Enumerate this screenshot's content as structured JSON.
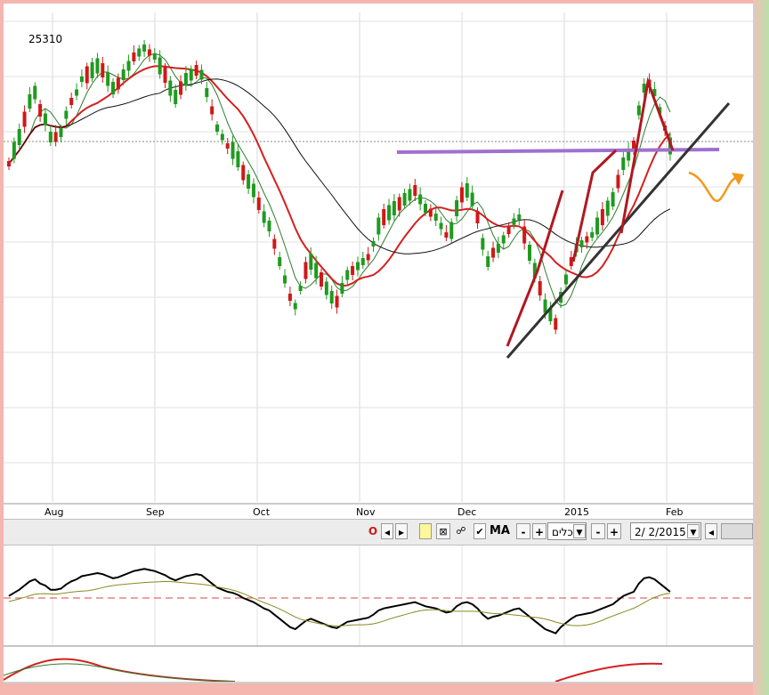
{
  "chart_data": {
    "type": "candlestick",
    "price_label": "25310",
    "x_month_labels": [
      "Aug",
      "Sep",
      "Oct",
      "Nov",
      "Dec",
      "2015",
      "Feb"
    ],
    "candles": [
      {
        "o": 1,
        "c": 0
      },
      {
        "o": 0,
        "c": 1
      },
      {
        "o": 1,
        "c": 0
      },
      {
        "o": 0,
        "c": 1
      },
      {
        "o": 1,
        "c": 0
      },
      {
        "o": 0,
        "c": 1
      },
      {
        "o": 1,
        "c": 0
      },
      {
        "o": 0,
        "c": 1
      },
      {
        "o": 1,
        "c": 0
      },
      {
        "o": 0,
        "c": 1
      }
    ],
    "indicators": [
      "MA"
    ],
    "oscillator_reference_line": "dashed"
  },
  "toolbar": {
    "o_label": "O",
    "ma_label": "MA",
    "minus_label": "-",
    "plus_label": "+",
    "tools_select": "כלים",
    "date_value": "2/  2/2015"
  },
  "colors": {
    "up": "#1f9a1f",
    "down": "#d01818",
    "ma_short": "#2e7d2e",
    "ma_mid": "#d42020",
    "ma_long": "#111111",
    "resistance": "#a070d0",
    "trend": "#333333",
    "arrow": "#f29a1c"
  }
}
